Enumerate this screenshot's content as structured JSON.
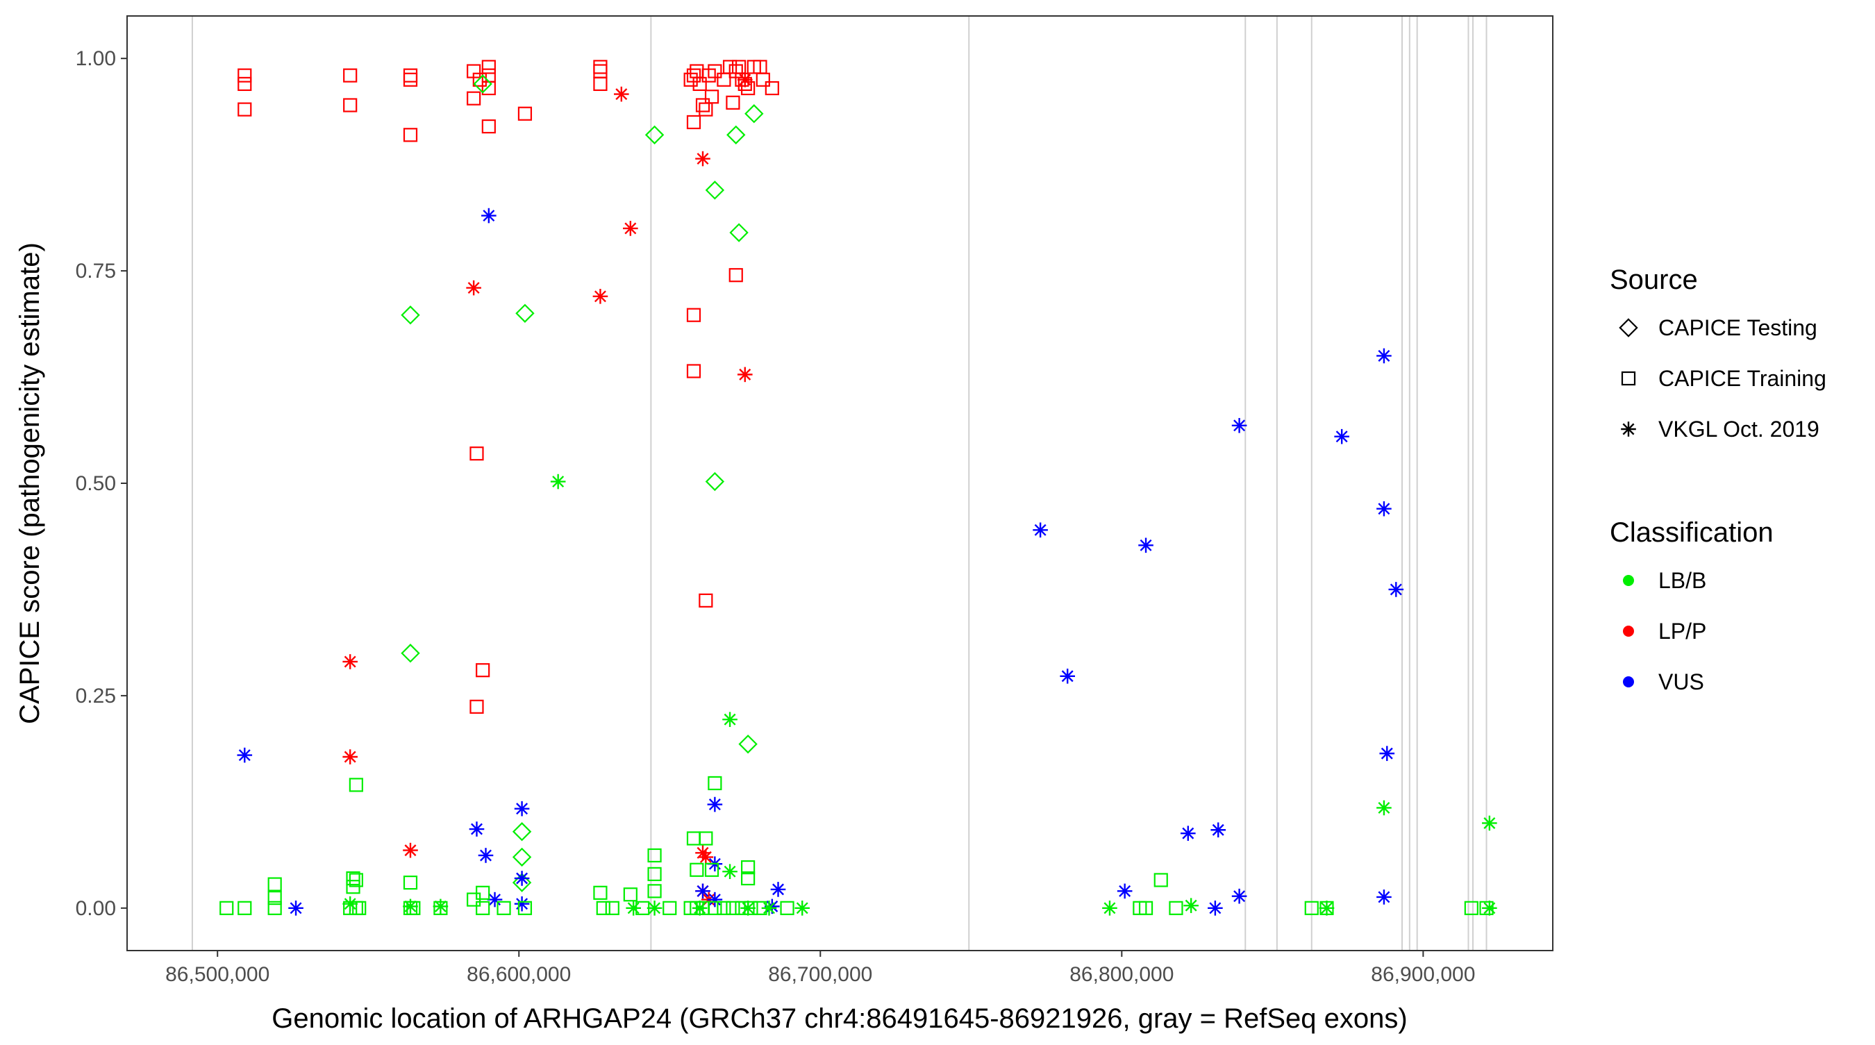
{
  "chart_data": {
    "type": "scatter",
    "xlabel": "Genomic location of ARHGAP24 (GRCh37 chr4:86491645-86921926, gray = RefSeq exons)",
    "ylabel": "CAPICE score (pathogenicity estimate)",
    "xlim": [
      86470000,
      86943000
    ],
    "ylim": [
      -0.05,
      1.05
    ],
    "x_ticks": [
      86500000,
      86600000,
      86700000,
      86800000,
      86900000
    ],
    "x_tick_labels": [
      "86,500,000",
      "86,600,000",
      "86,700,000",
      "86,800,000",
      "86,900,000"
    ],
    "y_ticks": [
      0,
      0.25,
      0.5,
      0.75,
      1.0
    ],
    "y_tick_labels": [
      "0.00",
      "0.25",
      "0.50",
      "0.75",
      "1.00"
    ],
    "grid": false,
    "legend_position": "right",
    "exons": [
      86491645,
      86643800,
      86749300,
      86841000,
      86851500,
      86863000,
      86893000,
      86895500,
      86898000,
      86915000,
      86916500,
      86921000
    ],
    "legend": {
      "source_title": "Source",
      "source_items": [
        {
          "key": "testing",
          "label": "CAPICE Testing",
          "shape": "diamond"
        },
        {
          "key": "training",
          "label": "CAPICE Training",
          "shape": "square"
        },
        {
          "key": "vkgl",
          "label": "VKGL Oct. 2019",
          "shape": "asterisk"
        }
      ],
      "class_title": "Classification",
      "class_items": [
        {
          "key": "LB/B",
          "label": "LB/B",
          "color": "#00ee00"
        },
        {
          "key": "LP/P",
          "label": "LP/P",
          "color": "#ff0000"
        },
        {
          "key": "VUS",
          "label": "VUS",
          "color": "#0000ff"
        }
      ]
    },
    "series": [
      {
        "source": "training",
        "class": "LP/P",
        "points": [
          [
            86509000,
            0.98
          ],
          [
            86509000,
            0.97
          ],
          [
            86509000,
            0.94
          ],
          [
            86544000,
            0.98
          ],
          [
            86544000,
            0.945
          ],
          [
            86564000,
            0.98
          ],
          [
            86564000,
            0.975
          ],
          [
            86564000,
            0.91
          ],
          [
            86585000,
            0.985
          ],
          [
            86585000,
            0.953
          ],
          [
            86587000,
            0.975
          ],
          [
            86590000,
            0.99
          ],
          [
            86590000,
            0.98
          ],
          [
            86590000,
            0.965
          ],
          [
            86590000,
            0.92
          ],
          [
            86602000,
            0.935
          ],
          [
            86627000,
            0.99
          ],
          [
            86627000,
            0.985
          ],
          [
            86627000,
            0.97
          ],
          [
            86657000,
            0.975
          ],
          [
            86658000,
            0.98
          ],
          [
            86659000,
            0.985
          ],
          [
            86658000,
            0.925
          ],
          [
            86660000,
            0.97
          ],
          [
            86661000,
            0.945
          ],
          [
            86662000,
            0.94
          ],
          [
            86663000,
            0.98
          ],
          [
            86664000,
            0.955
          ],
          [
            86665000,
            0.985
          ],
          [
            86668000,
            0.975
          ],
          [
            86670000,
            0.99
          ],
          [
            86672000,
            0.985
          ],
          [
            86673000,
            0.99
          ],
          [
            86674000,
            0.975
          ],
          [
            86675000,
            0.97
          ],
          [
            86676000,
            0.965
          ],
          [
            86678000,
            0.99
          ],
          [
            86680000,
            0.99
          ],
          [
            86681000,
            0.975
          ],
          [
            86684000,
            0.965
          ],
          [
            86671000,
            0.948
          ],
          [
            86672000,
            0.745
          ],
          [
            86658000,
            0.698
          ],
          [
            86658000,
            0.632
          ],
          [
            86586000,
            0.535
          ],
          [
            86662000,
            0.362
          ],
          [
            86588000,
            0.28
          ],
          [
            86586000,
            0.237
          ]
        ]
      },
      {
        "source": "testing",
        "class": "LB/B",
        "points": [
          [
            86588000,
            0.97
          ],
          [
            86645000,
            0.91
          ],
          [
            86672000,
            0.91
          ],
          [
            86678000,
            0.935
          ],
          [
            86665000,
            0.845
          ],
          [
            86673000,
            0.795
          ],
          [
            86564000,
            0.698
          ],
          [
            86602000,
            0.7
          ],
          [
            86665000,
            0.502
          ],
          [
            86564000,
            0.3
          ],
          [
            86676000,
            0.193
          ],
          [
            86601000,
            0.09
          ],
          [
            86601000,
            0.06
          ],
          [
            86601000,
            0.03
          ]
        ]
      },
      {
        "source": "vkgl",
        "class": "LP/P",
        "points": [
          [
            86634000,
            0.958
          ],
          [
            86675000,
            0.975
          ],
          [
            86661000,
            0.882
          ],
          [
            86637000,
            0.8
          ],
          [
            86585000,
            0.73
          ],
          [
            86627000,
            0.72
          ],
          [
            86675000,
            0.628
          ],
          [
            86544000,
            0.29
          ],
          [
            86544000,
            0.178
          ],
          [
            86564000,
            0.068
          ],
          [
            86661000,
            0.065
          ],
          [
            86662000,
            0.06
          ],
          [
            86661000,
            0.02
          ],
          [
            86663000,
            0.01
          ]
        ]
      },
      {
        "source": "vkgl",
        "class": "VUS",
        "points": [
          [
            86590000,
            0.815
          ],
          [
            86509000,
            0.18
          ],
          [
            86586000,
            0.093
          ],
          [
            86589000,
            0.062
          ],
          [
            86601000,
            0.117
          ],
          [
            86601000,
            0.035
          ],
          [
            86601000,
            0.005
          ],
          [
            86526000,
            0.0
          ],
          [
            86592000,
            0.01
          ],
          [
            86665000,
            0.122
          ],
          [
            86665000,
            0.052
          ],
          [
            86661000,
            0.02
          ],
          [
            86665000,
            0.01
          ],
          [
            86686000,
            0.022
          ],
          [
            86684000,
            0.002
          ],
          [
            86773000,
            0.445
          ],
          [
            86782000,
            0.273
          ],
          [
            86808000,
            0.427
          ],
          [
            86801000,
            0.02
          ],
          [
            86822000,
            0.088
          ],
          [
            86832000,
            0.092
          ],
          [
            86839000,
            0.568
          ],
          [
            86831000,
            0.0
          ],
          [
            86839000,
            0.014
          ],
          [
            86873000,
            0.555
          ],
          [
            86887000,
            0.65
          ],
          [
            86887000,
            0.47
          ],
          [
            86891000,
            0.375
          ],
          [
            86888000,
            0.182
          ],
          [
            86887000,
            0.013
          ]
        ]
      },
      {
        "source": "vkgl",
        "class": "LB/B",
        "points": [
          [
            86613000,
            0.502
          ],
          [
            86670000,
            0.222
          ],
          [
            86887000,
            0.118
          ],
          [
            86922000,
            0.1
          ],
          [
            86670000,
            0.043
          ],
          [
            86544000,
            0.005
          ],
          [
            86564000,
            0.002
          ],
          [
            86574000,
            0.002
          ],
          [
            86638000,
            0.0
          ],
          [
            86645000,
            0.0
          ],
          [
            86676000,
            0.0
          ],
          [
            86683000,
            0.0
          ],
          [
            86694000,
            0.0
          ],
          [
            86796000,
            0.0
          ],
          [
            86823000,
            0.003
          ],
          [
            86868000,
            0.0
          ],
          [
            86922000,
            0.0
          ],
          [
            86660000,
            0.0
          ]
        ]
      },
      {
        "source": "training",
        "class": "LB/B",
        "points": [
          [
            86546000,
            0.145
          ],
          [
            86665000,
            0.147
          ],
          [
            86658000,
            0.082
          ],
          [
            86662000,
            0.082
          ],
          [
            86564000,
            0.03
          ],
          [
            86645000,
            0.062
          ],
          [
            86645000,
            0.04
          ],
          [
            86645000,
            0.02
          ],
          [
            86659000,
            0.045
          ],
          [
            86664000,
            0.045
          ],
          [
            86676000,
            0.048
          ],
          [
            86676000,
            0.035
          ],
          [
            86519000,
            0.028
          ],
          [
            86519000,
            0.012
          ],
          [
            86545000,
            0.035
          ],
          [
            86545000,
            0.025
          ],
          [
            86546000,
            0.033
          ],
          [
            86588000,
            0.018
          ],
          [
            86585000,
            0.01
          ],
          [
            86627000,
            0.018
          ],
          [
            86637000,
            0.016
          ],
          [
            86813000,
            0.033
          ],
          [
            86503000,
            0.0
          ],
          [
            86509000,
            0.0
          ],
          [
            86519000,
            0.0
          ],
          [
            86544000,
            0.0
          ],
          [
            86546000,
            0.0
          ],
          [
            86547000,
            0.0
          ],
          [
            86564000,
            0.0
          ],
          [
            86565000,
            0.0
          ],
          [
            86574000,
            0.0
          ],
          [
            86588000,
            0.0
          ],
          [
            86595000,
            0.0
          ],
          [
            86602000,
            0.0
          ],
          [
            86628000,
            0.0
          ],
          [
            86631000,
            0.0
          ],
          [
            86641000,
            0.0
          ],
          [
            86650000,
            0.0
          ],
          [
            86657000,
            0.0
          ],
          [
            86659000,
            0.0
          ],
          [
            86661000,
            0.0
          ],
          [
            86665000,
            0.0
          ],
          [
            86668000,
            0.0
          ],
          [
            86671000,
            0.0
          ],
          [
            86674000,
            0.0
          ],
          [
            86677000,
            0.0
          ],
          [
            86680000,
            0.0
          ],
          [
            86689000,
            0.0
          ],
          [
            86806000,
            0.0
          ],
          [
            86808000,
            0.0
          ],
          [
            86818000,
            0.0
          ],
          [
            86863000,
            0.0
          ],
          [
            86868000,
            0.0
          ],
          [
            86916000,
            0.0
          ],
          [
            86921000,
            0.0
          ]
        ]
      }
    ]
  }
}
